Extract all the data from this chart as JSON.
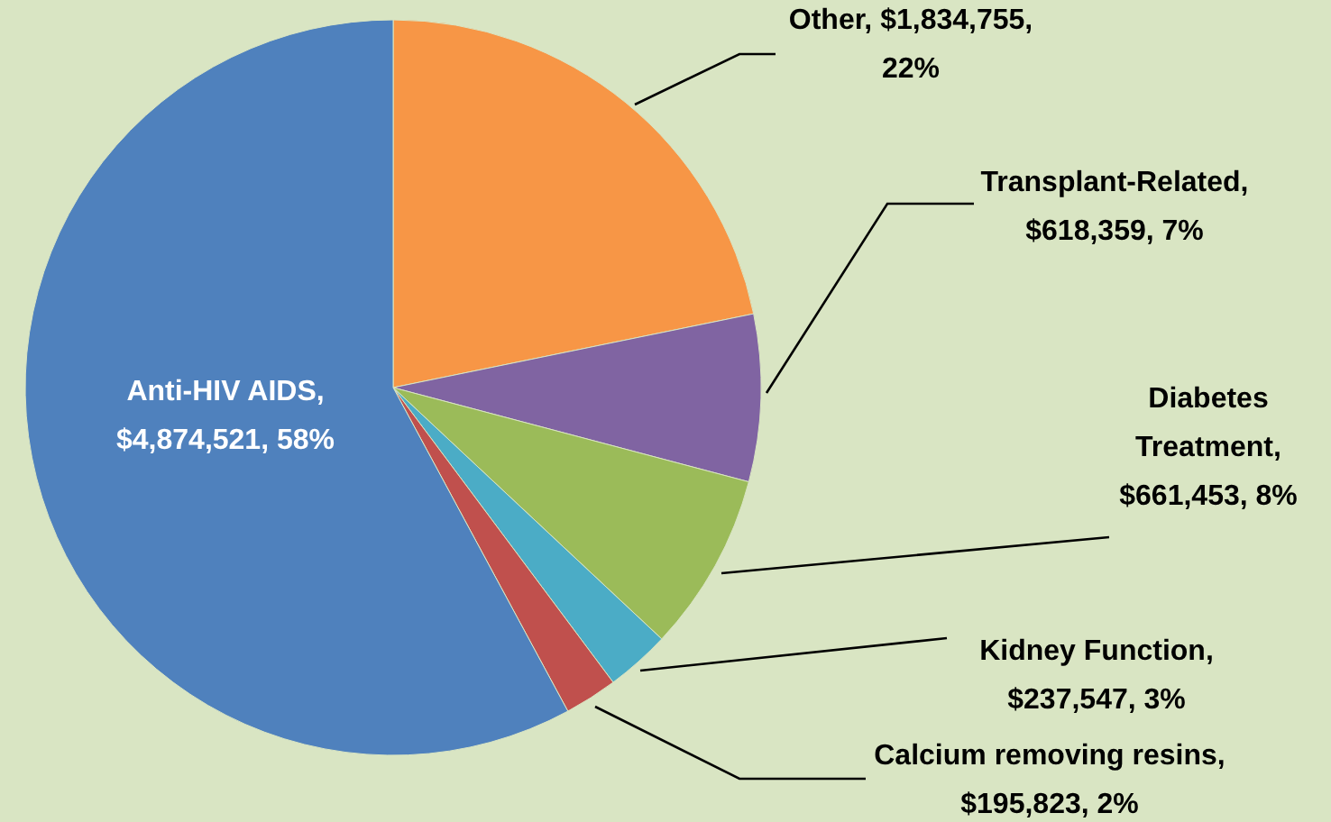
{
  "chart_data": {
    "type": "pie",
    "categories": [
      "Other",
      "Transplant-Related",
      "Diabetes Treatment",
      "Kidney Function",
      "Calcium removing resins",
      "Anti-HIV AIDS"
    ],
    "values": [
      1834755,
      618359,
      661453,
      237547,
      195823,
      4874521
    ],
    "value_labels": [
      ", $1,834,755, 22%",
      ", $618,359, 7%",
      ", $661,453, 8%",
      ", $237,547, 3%",
      ", $195,823, 2%",
      ", $4,874,521, 58%"
    ],
    "colors": [
      "#f79646",
      "#8064a2",
      "#9bbb59",
      "#4bacc6",
      "#c0504d",
      "#4f81bd"
    ]
  }
}
